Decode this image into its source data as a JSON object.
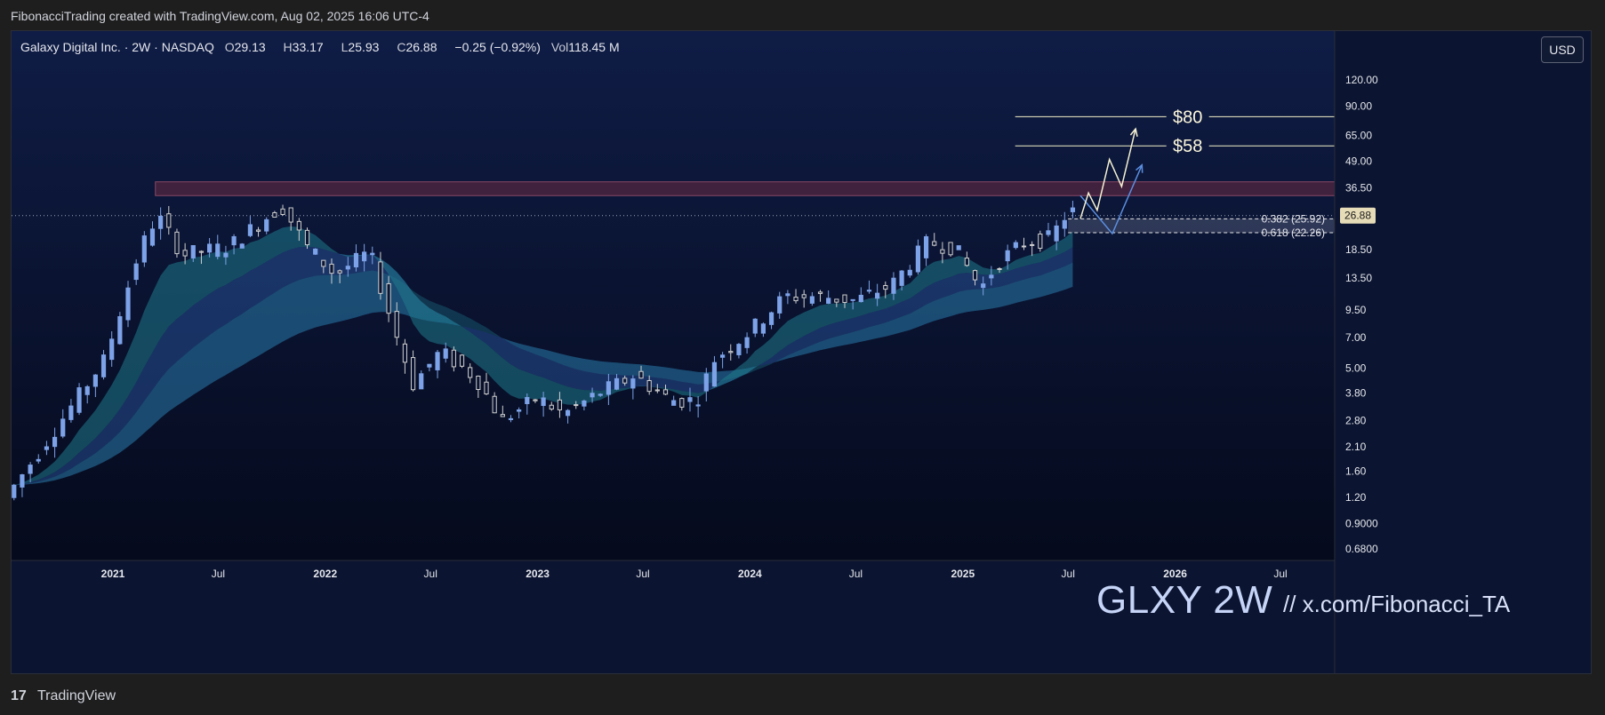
{
  "header": {
    "attribution": "FibonacciTrading created with TradingView.com, Aug 02, 2025 16:06 UTC-4"
  },
  "legend": {
    "symbol": "Galaxy Digital Inc. · 2W · NASDAQ",
    "open_label": "O",
    "open": "29.13",
    "high_label": "H",
    "high": "33.17",
    "low_label": "L",
    "low": "25.93",
    "close_label": "C",
    "close": "26.88",
    "change": "−0.25 (−0.92%)",
    "vol_label": "Vol",
    "vol": "118.45 M"
  },
  "currency_button": "USD",
  "watermark": {
    "ticker": "GLXY 2W",
    "link": "//  x.com/Fibonacci_TA"
  },
  "footer": {
    "brand": "TradingView",
    "logo_glyph": "17"
  },
  "colors": {
    "background": "#0b1430",
    "up_candle": "#7da2e8",
    "down_candle": "#d0d0d0",
    "ribbon_fast": "#1f7a8c",
    "ribbon_slow": "#2c5aa8",
    "resistance_zone": "#4a2340",
    "target_line": "#f3f0c8",
    "price_tag": "#e7dcb8"
  },
  "chart_data": {
    "type": "candlestick",
    "scale": "log",
    "ylim": [
      0.56,
      200
    ],
    "y_ticks": [
      "120.00",
      "90.00",
      "65.00",
      "49.00",
      "36.50",
      "26.88",
      "18.50",
      "13.50",
      "9.50",
      "7.00",
      "5.00",
      "3.80",
      "2.80",
      "2.10",
      "1.60",
      "1.20",
      "0.9000",
      "0.6800"
    ],
    "x_ticks": [
      {
        "label": "2021",
        "date": "2021-01-01"
      },
      {
        "label": "Jul",
        "date": "2021-07-01"
      },
      {
        "label": "2022",
        "date": "2022-01-01"
      },
      {
        "label": "Jul",
        "date": "2022-07-01"
      },
      {
        "label": "2023",
        "date": "2023-01-01"
      },
      {
        "label": "Jul",
        "date": "2023-07-01"
      },
      {
        "label": "2024",
        "date": "2024-01-01"
      },
      {
        "label": "Jul",
        "date": "2024-07-01"
      },
      {
        "label": "2025",
        "date": "2025-01-01"
      },
      {
        "label": "Jul",
        "date": "2025-07-01"
      },
      {
        "label": "2026",
        "date": "2026-01-01"
      },
      {
        "label": "Jul",
        "date": "2026-07-01"
      }
    ],
    "anchor_points": [
      {
        "date": "2020-07-15",
        "price": 1.2
      },
      {
        "date": "2020-10-01",
        "price": 2.4
      },
      {
        "date": "2021-01-01",
        "price": 5.5
      },
      {
        "date": "2021-03-01",
        "price": 18.0
      },
      {
        "date": "2021-04-01",
        "price": 27.0
      },
      {
        "date": "2021-05-15",
        "price": 17.5
      },
      {
        "date": "2021-08-01",
        "price": 19.0
      },
      {
        "date": "2021-11-01",
        "price": 30.0
      },
      {
        "date": "2021-12-15",
        "price": 19.0
      },
      {
        "date": "2022-02-01",
        "price": 14.0
      },
      {
        "date": "2022-04-01",
        "price": 18.0
      },
      {
        "date": "2022-05-15",
        "price": 7.5
      },
      {
        "date": "2022-06-15",
        "price": 4.2
      },
      {
        "date": "2022-08-01",
        "price": 6.0
      },
      {
        "date": "2022-10-01",
        "price": 4.5
      },
      {
        "date": "2022-11-15",
        "price": 2.8
      },
      {
        "date": "2023-01-15",
        "price": 3.6
      },
      {
        "date": "2023-03-01",
        "price": 3.0
      },
      {
        "date": "2023-05-01",
        "price": 3.8
      },
      {
        "date": "2023-07-01",
        "price": 4.6
      },
      {
        "date": "2023-09-01",
        "price": 3.5
      },
      {
        "date": "2023-10-15",
        "price": 3.5
      },
      {
        "date": "2023-11-15",
        "price": 5.5
      },
      {
        "date": "2024-01-15",
        "price": 7.5
      },
      {
        "date": "2024-03-15",
        "price": 11.0
      },
      {
        "date": "2024-05-15",
        "price": 11.0
      },
      {
        "date": "2024-07-15",
        "price": 10.5
      },
      {
        "date": "2024-09-15",
        "price": 12.5
      },
      {
        "date": "2024-11-15",
        "price": 20.0
      },
      {
        "date": "2025-01-01",
        "price": 19.0
      },
      {
        "date": "2025-02-15",
        "price": 12.0
      },
      {
        "date": "2025-03-15",
        "price": 16.0
      },
      {
        "date": "2025-05-01",
        "price": 20.0
      },
      {
        "date": "2025-06-15",
        "price": 21.0
      },
      {
        "date": "2025-07-15",
        "price": 28.0
      }
    ],
    "last_price": 26.88,
    "resistance_zone": [
      33.5,
      39.0
    ],
    "targets": [
      {
        "label": "$80",
        "price": 80
      },
      {
        "label": "$58",
        "price": 58
      }
    ],
    "fib_levels": [
      {
        "label": "0.382 (25.92)",
        "price": 25.92
      },
      {
        "label": "0.618 (22.26)",
        "price": 22.26
      }
    ],
    "projection_white": [
      {
        "date": "2025-07-22",
        "price": 26.0
      },
      {
        "date": "2025-08-05",
        "price": 34.5
      },
      {
        "date": "2025-08-20",
        "price": 28.5
      },
      {
        "date": "2025-09-10",
        "price": 50.0
      },
      {
        "date": "2025-10-01",
        "price": 37.0
      },
      {
        "date": "2025-10-25",
        "price": 70.0
      }
    ],
    "projection_blue": [
      {
        "date": "2025-07-22",
        "price": 33.5
      },
      {
        "date": "2025-09-15",
        "price": 22.0
      },
      {
        "date": "2025-11-05",
        "price": 47.0
      }
    ]
  }
}
